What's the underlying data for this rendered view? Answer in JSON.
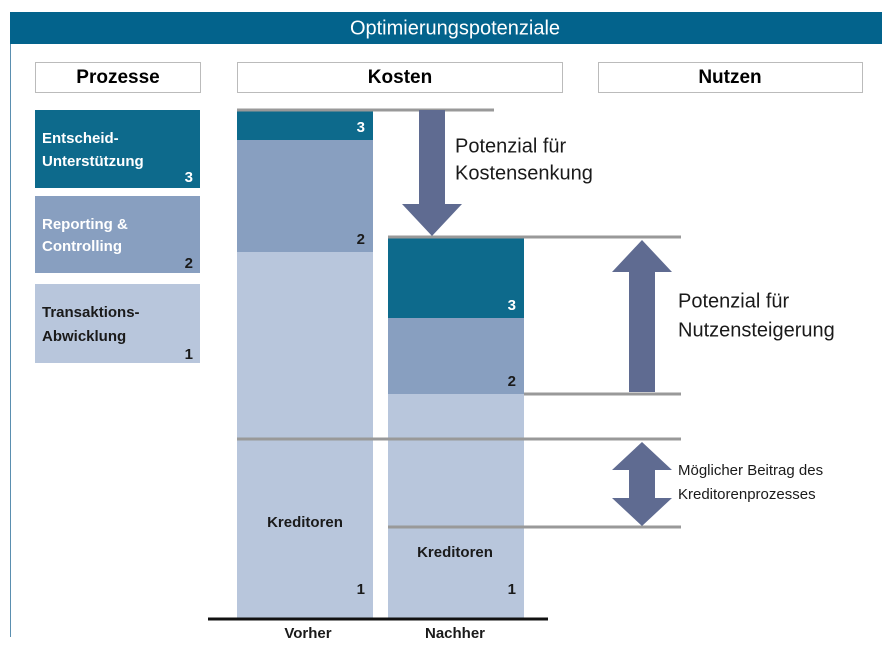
{
  "header": {
    "title": "Optimierungspotenziale"
  },
  "column_headers": [
    "Prozesse",
    "Kosten",
    "Nutzen"
  ],
  "processes": [
    {
      "lines": [
        "Entscheid-",
        "Unterstützung"
      ],
      "number": "3"
    },
    {
      "lines": [
        "Reporting &",
        "Controlling"
      ],
      "number": "2"
    },
    {
      "lines": [
        "Transaktions-",
        "Abwicklung"
      ],
      "number": "1"
    }
  ],
  "bars": [
    {
      "label": "Vorher",
      "segment_labels": [
        "3",
        "2",
        "1"
      ],
      "sub_label": "Kreditoren"
    },
    {
      "label": "Nachher",
      "segment_labels": [
        "3",
        "2",
        "1"
      ],
      "sub_label": "Kreditoren"
    }
  ],
  "annotations": {
    "cost": [
      "Potenzial für",
      "Kostensenkung"
    ],
    "benefit": [
      "Potenzial für",
      "Nutzensteigerung"
    ],
    "contribution": [
      "Möglicher Beitrag des",
      "Kreditorenprozesses"
    ]
  }
}
